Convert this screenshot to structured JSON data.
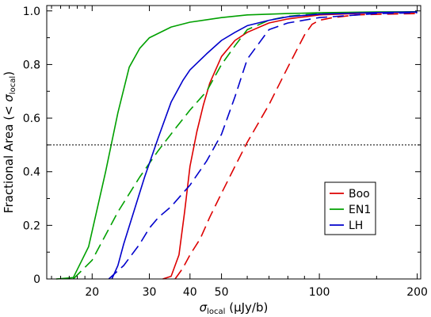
{
  "chart_data": {
    "type": "line",
    "title": "",
    "xlabel": {
      "symbol": "σ",
      "subscript": "local",
      "unit": " (μJy/b)"
    },
    "ylabel": {
      "prefix": "Fractional Area (< ",
      "symbol": "σ",
      "subscript": "local",
      "suffix": ")"
    },
    "x_scale": "log",
    "xlim": [
      14.5,
      205
    ],
    "ylim": [
      0,
      1.02
    ],
    "x_ticks": [
      {
        "value": 20,
        "label": "20"
      },
      {
        "value": 30,
        "label": "30"
      },
      {
        "value": 40,
        "label": "40"
      },
      {
        "value": 50,
        "label": "50"
      },
      {
        "value": 100,
        "label": "100"
      },
      {
        "value": 200,
        "label": "200"
      }
    ],
    "y_ticks": [
      {
        "value": 0,
        "label": "0"
      },
      {
        "value": 0.2,
        "label": "0.2"
      },
      {
        "value": 0.4,
        "label": "0.4"
      },
      {
        "value": 0.6,
        "label": "0.6"
      },
      {
        "value": 0.8,
        "label": "0.8"
      },
      {
        "value": 1.0,
        "label": "1.0"
      }
    ],
    "reference_line": {
      "y": 0.5,
      "style": "dotted",
      "color": "#000000"
    },
    "grid": false,
    "legend": {
      "position": "lower-right",
      "entries": [
        "Boo",
        "EN1",
        "LH"
      ]
    },
    "series": [
      {
        "name": "Boo",
        "field": "Boo",
        "style": "solid",
        "color": "#dd0000",
        "x": [
          33,
          35,
          37,
          38.5,
          40,
          42,
          44,
          46,
          50,
          55,
          60,
          70,
          80,
          100,
          150,
          200
        ],
        "y": [
          0,
          0.01,
          0.09,
          0.25,
          0.42,
          0.55,
          0.65,
          0.73,
          0.83,
          0.89,
          0.92,
          0.955,
          0.97,
          0.985,
          0.993,
          0.995
        ]
      },
      {
        "name": "",
        "field": "Boo",
        "style": "dashed",
        "color": "#dd0000",
        "x": [
          36,
          38,
          40,
          43,
          46,
          50,
          55,
          60,
          70,
          80,
          90,
          95,
          100,
          110,
          130,
          160,
          200
        ],
        "y": [
          0,
          0.04,
          0.09,
          0.15,
          0.23,
          0.32,
          0.42,
          0.51,
          0.65,
          0.79,
          0.91,
          0.95,
          0.965,
          0.975,
          0.985,
          0.988,
          0.99
        ]
      },
      {
        "name": "EN1",
        "field": "EN1",
        "style": "solid",
        "color": "#00a000",
        "x": [
          15.5,
          17.5,
          19.5,
          22,
          24,
          26,
          28,
          30,
          35,
          40,
          50,
          60,
          80,
          100,
          150,
          200
        ],
        "y": [
          0,
          0.005,
          0.12,
          0.4,
          0.62,
          0.79,
          0.86,
          0.9,
          0.94,
          0.958,
          0.975,
          0.985,
          0.99,
          0.993,
          0.996,
          0.997
        ]
      },
      {
        "name": "",
        "field": "EN1",
        "style": "dashed",
        "color": "#00a000",
        "x": [
          17.5,
          20,
          24,
          28,
          32,
          36,
          40,
          45,
          50,
          55,
          60,
          70,
          80,
          100,
          150,
          200
        ],
        "y": [
          0,
          0.07,
          0.25,
          0.38,
          0.48,
          0.56,
          0.63,
          0.7,
          0.8,
          0.87,
          0.93,
          0.965,
          0.98,
          0.99,
          0.995,
          0.996
        ]
      },
      {
        "name": "LH",
        "field": "LH",
        "style": "solid",
        "color": "#0000cc",
        "x": [
          23,
          24,
          25,
          27,
          29,
          32,
          35,
          38,
          40,
          45,
          50,
          55,
          60,
          70,
          80,
          100,
          150,
          200
        ],
        "y": [
          0,
          0.05,
          0.13,
          0.26,
          0.38,
          0.53,
          0.66,
          0.74,
          0.78,
          0.84,
          0.89,
          0.92,
          0.945,
          0.965,
          0.978,
          0.988,
          0.994,
          0.996
        ]
      },
      {
        "name": "",
        "field": "LH",
        "style": "dashed",
        "color": "#0000cc",
        "x": [
          22.5,
          25,
          28,
          30,
          32,
          35,
          38,
          40,
          45,
          50,
          55,
          60,
          70,
          80,
          100,
          150,
          200
        ],
        "y": [
          0,
          0.05,
          0.13,
          0.19,
          0.23,
          0.27,
          0.32,
          0.35,
          0.44,
          0.54,
          0.68,
          0.82,
          0.93,
          0.955,
          0.975,
          0.99,
          0.993
        ]
      }
    ]
  }
}
